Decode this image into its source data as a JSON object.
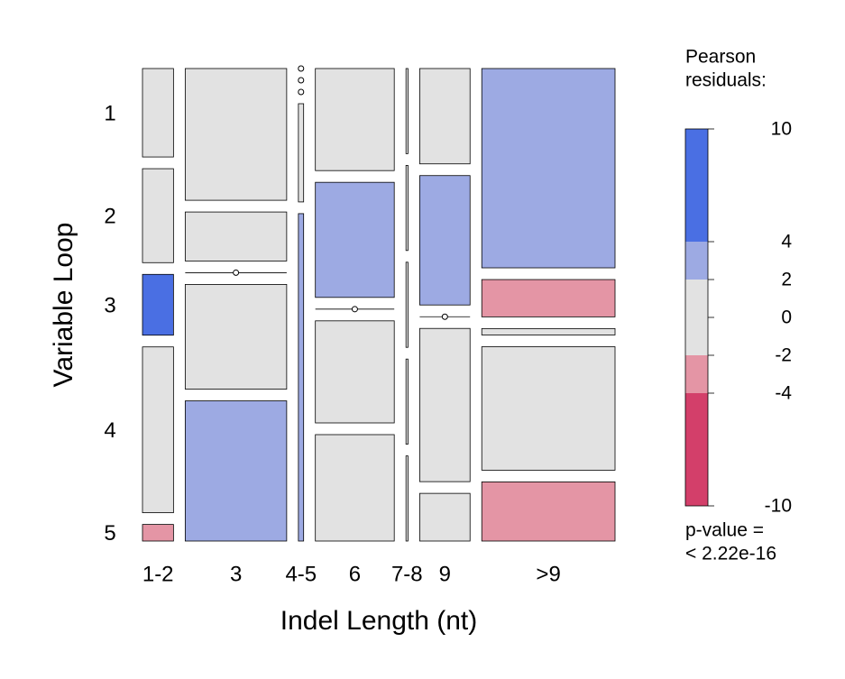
{
  "chart_data": {
    "type": "mosaic",
    "x_label": "Indel Length (nt)",
    "y_label": "Variable Loop",
    "categories": [
      "1-2",
      "3",
      "4-5",
      "6",
      "7-8",
      "9",
      ">9"
    ],
    "rows": [
      "1",
      "2",
      "3",
      "4",
      "5"
    ],
    "values": [
      [
        16,
        17,
        11,
        30,
        3
      ],
      [
        78,
        29,
        0,
        62,
        83
      ],
      [
        0,
        0,
        0,
        3,
        10
      ],
      [
        47,
        53,
        0,
        47,
        49
      ],
      [
        1,
        1,
        1,
        1,
        1
      ],
      [
        28,
        38,
        0,
        45,
        14
      ],
      [
        155,
        29,
        5,
        96,
        46
      ]
    ],
    "colors": [
      [
        "#e2e2e2",
        "#e2e2e2",
        "#4a6fe3",
        "#e2e2e2",
        "#e495a5"
      ],
      [
        "#e2e2e2",
        "#e2e2e2",
        "#e2e2e2",
        "#e2e2e2",
        "#9daae3"
      ],
      [
        "#e2e2e2",
        "#e2e2e2",
        "#e2e2e2",
        "#e2e2e2",
        "#9daae3"
      ],
      [
        "#e2e2e2",
        "#9daae3",
        "#e2e2e2",
        "#e2e2e2",
        "#e2e2e2"
      ],
      [
        "#e2e2e2",
        "#e2e2e2",
        "#e2e2e2",
        "#e2e2e2",
        "#e2e2e2"
      ],
      [
        "#e2e2e2",
        "#9daae3",
        "#e2e2e2",
        "#e2e2e2",
        "#e2e2e2"
      ],
      [
        "#9daae3",
        "#e495a5",
        "#e2e2e2",
        "#e2e2e2",
        "#e495a5"
      ]
    ],
    "legend": {
      "title": [
        "Pearson",
        "residuals:"
      ],
      "ticks": [
        10,
        4,
        2,
        0,
        -2,
        -4,
        -10
      ],
      "colors": [
        "#4a6fe3",
        "#9daae3",
        "#e2e2e2",
        "#e2e2e2",
        "#e495a5",
        "#d33f6a"
      ]
    },
    "p_value_label": "p-value =",
    "p_value": "< 2.22e-16"
  }
}
